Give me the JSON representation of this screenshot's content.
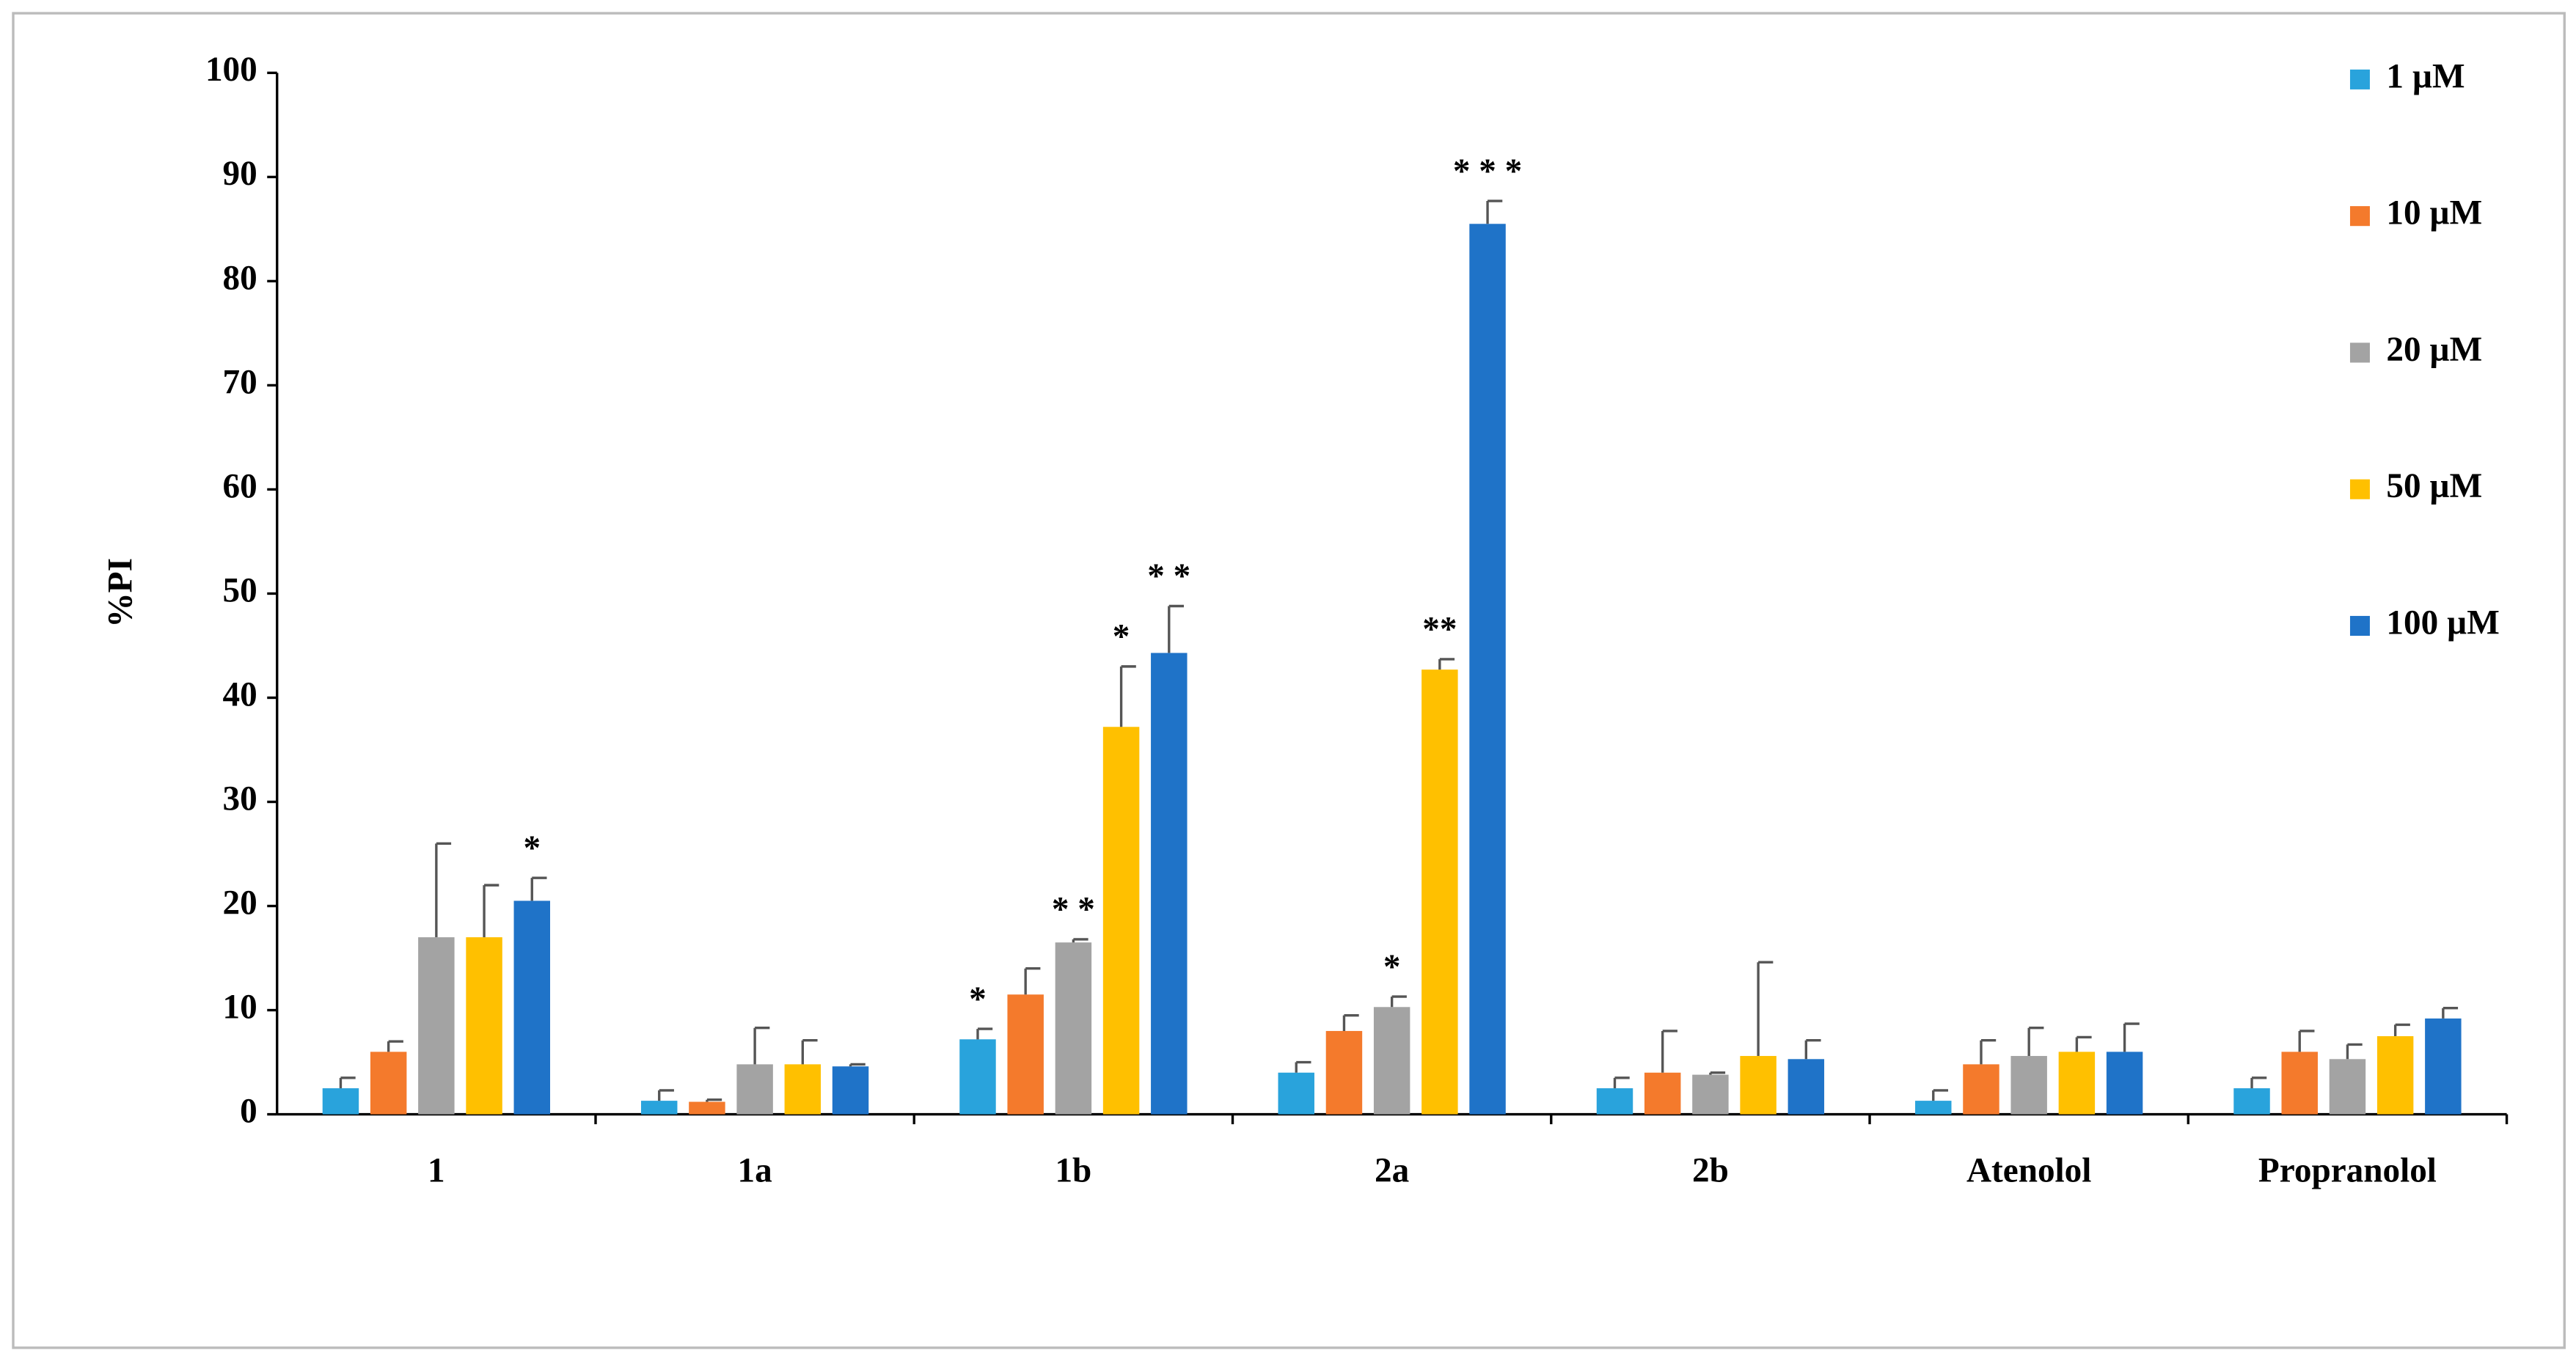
{
  "chart_data": {
    "type": "bar",
    "y_label": "%PI",
    "categories": [
      "1",
      "1a",
      "1b",
      "2a",
      "2b",
      "Atenolol",
      "Propranolol"
    ],
    "ylim": [
      0,
      100
    ],
    "yticks": [
      0,
      10,
      20,
      30,
      40,
      50,
      60,
      70,
      80,
      90,
      100
    ],
    "series": [
      {
        "name": "1 µM",
        "color": "#29a3dc",
        "values": [
          2.5,
          1.3,
          7.2,
          4,
          2.5,
          1.3,
          2.5
        ],
        "errors": [
          1,
          1,
          1,
          1,
          1,
          1,
          1
        ],
        "annotations": [
          null,
          null,
          "*",
          null,
          null,
          null,
          null
        ]
      },
      {
        "name": "10 µM",
        "color": "#f47a2c",
        "values": [
          6,
          1.2,
          11.5,
          8,
          4,
          4.8,
          6
        ],
        "errors": [
          1,
          0.2,
          2.5,
          1.5,
          4,
          2.3,
          2
        ],
        "annotations": [
          null,
          null,
          null,
          null,
          null,
          null,
          null
        ]
      },
      {
        "name": "20 µM",
        "color": "#a3a3a3",
        "values": [
          17,
          4.8,
          16.5,
          10.3,
          3.8,
          5.6,
          5.3
        ],
        "errors": [
          9,
          3.5,
          0.3,
          1,
          0.2,
          2.7,
          1.4
        ],
        "annotations": [
          null,
          null,
          "* *",
          "*",
          null,
          null,
          null
        ]
      },
      {
        "name": "50 µM",
        "color": "#ffc000",
        "values": [
          17,
          4.8,
          37.2,
          42.7,
          5.6,
          6,
          7.5
        ],
        "errors": [
          5,
          2.3,
          5.8,
          1,
          9,
          1.4,
          1.1
        ],
        "annotations": [
          null,
          null,
          "*",
          "**",
          null,
          null,
          null
        ]
      },
      {
        "name": "100 µM",
        "color": "#1f73c8",
        "values": [
          20.5,
          4.6,
          44.3,
          85.5,
          5.3,
          6,
          9.2
        ],
        "errors": [
          2.2,
          0.2,
          4.5,
          2.2,
          1.8,
          2.7,
          1
        ],
        "annotations": [
          "*",
          null,
          "* *",
          "* * *",
          null,
          null,
          null
        ]
      }
    ]
  }
}
